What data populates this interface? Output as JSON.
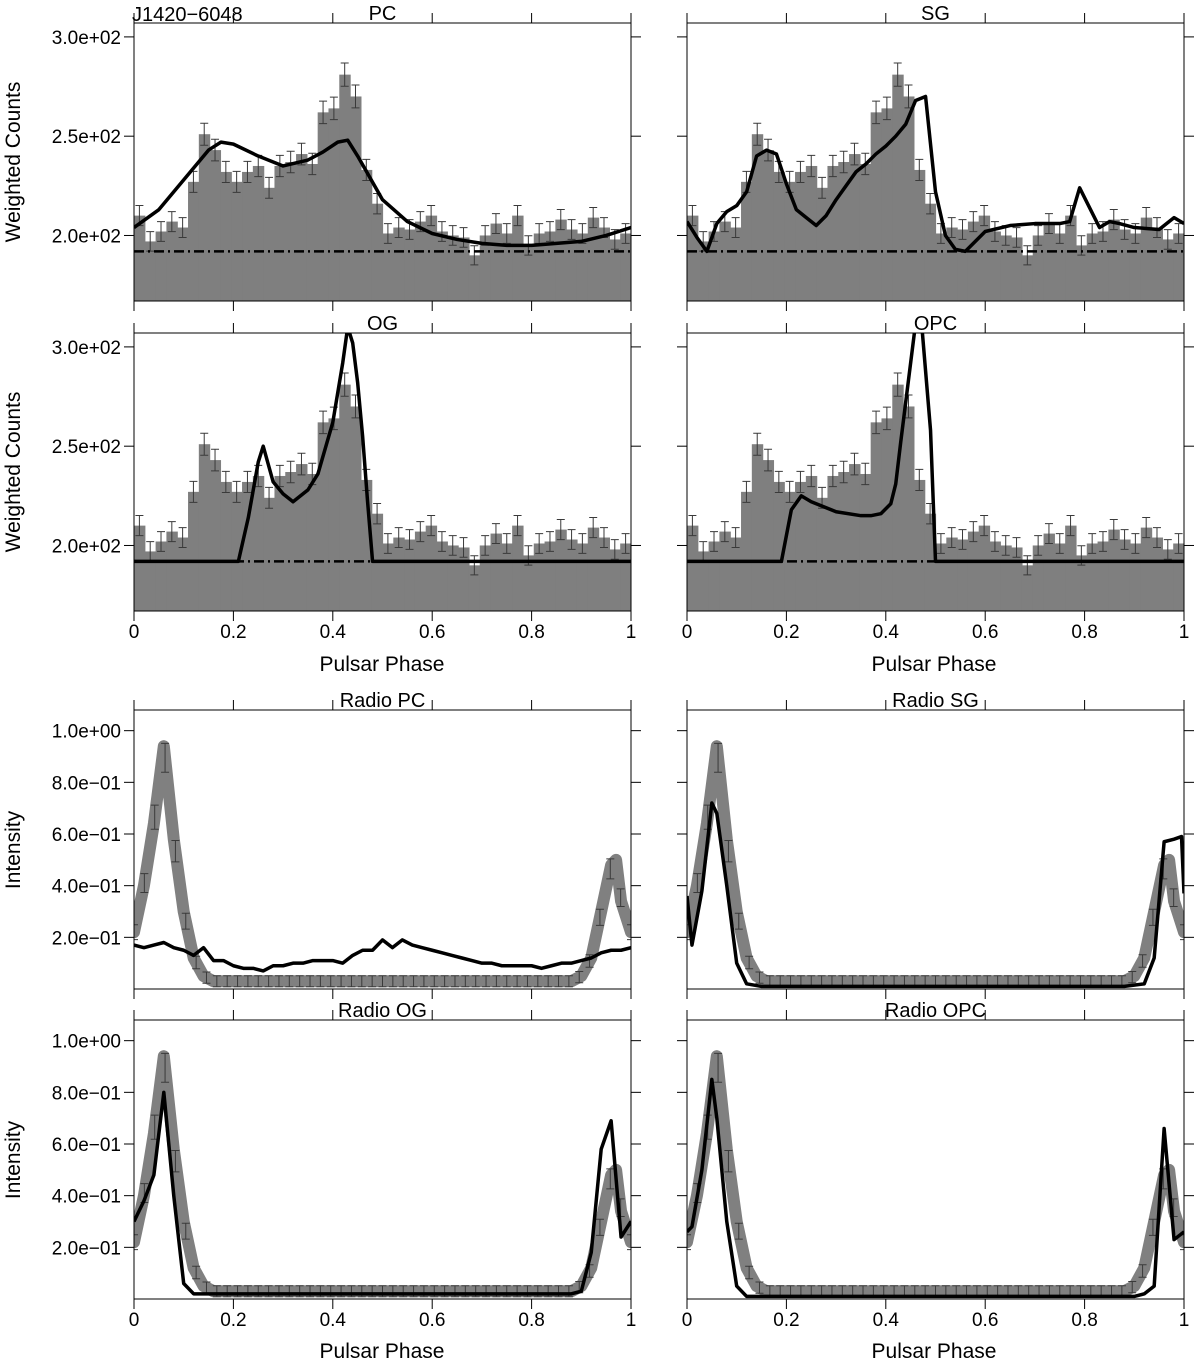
{
  "figure": {
    "pulsar_name": "J1420−6048",
    "phase_label": "Pulsar Phase",
    "gamma_ylabel": "Weighted Counts",
    "radio_ylabel": "Intensity",
    "colors": {
      "histogram": "#7f7f7f",
      "model": "#000000",
      "radio_obs": "#808080"
    }
  },
  "chart_data": [
    {
      "id": "gamma-pc",
      "type": "bar",
      "title": "PC",
      "xlabel": "",
      "ylabel": "Weighted Counts",
      "xlim": [
        0,
        1
      ],
      "ylim": [
        167,
        307
      ],
      "ytick_values": [
        200,
        250,
        300
      ],
      "ytick_labels": [
        "2.0e+02",
        "2.5e+02",
        "3.0e+02"
      ],
      "xtick_values": [
        0,
        0.2,
        0.4,
        0.6,
        0.8,
        1
      ],
      "xtick_labels": [],
      "background_level": 192,
      "histogram": [
        210,
        197,
        202,
        207,
        204,
        227,
        251,
        243,
        232,
        227,
        232,
        235,
        224,
        235,
        237,
        241,
        236,
        262,
        264,
        281,
        270,
        233,
        216,
        201,
        204,
        203,
        207,
        210,
        202,
        200,
        199,
        190,
        200,
        206,
        201,
        210,
        195,
        201,
        202,
        208,
        203,
        201,
        209,
        204,
        198,
        201
      ],
      "model": {
        "x": [
          0,
          0.05,
          0.1,
          0.15,
          0.175,
          0.2,
          0.25,
          0.3,
          0.35,
          0.38,
          0.41,
          0.43,
          0.45,
          0.5,
          0.55,
          0.6,
          0.65,
          0.7,
          0.75,
          0.8,
          0.85,
          0.9,
          0.95,
          1.0
        ],
        "y": [
          204,
          213,
          228,
          243,
          247,
          246,
          240,
          235,
          238,
          242,
          247,
          248,
          240,
          218,
          207,
          201,
          198,
          196,
          195,
          195,
          196,
          197,
          200,
          204
        ]
      }
    },
    {
      "id": "gamma-sg",
      "type": "bar",
      "title": "SG",
      "xlabel": "",
      "ylabel": "",
      "xlim": [
        0,
        1
      ],
      "ylim": [
        167,
        307
      ],
      "ytick_values": [
        200,
        250,
        300
      ],
      "ytick_labels": [],
      "xtick_values": [
        0,
        0.2,
        0.4,
        0.6,
        0.8,
        1
      ],
      "xtick_labels": [],
      "background_level": 192,
      "histogram": [
        210,
        197,
        202,
        207,
        204,
        227,
        251,
        243,
        232,
        227,
        232,
        235,
        224,
        235,
        237,
        241,
        236,
        262,
        264,
        281,
        270,
        233,
        216,
        201,
        204,
        203,
        207,
        210,
        202,
        200,
        199,
        190,
        200,
        206,
        201,
        210,
        195,
        201,
        202,
        208,
        203,
        201,
        209,
        204,
        198,
        201
      ],
      "model": {
        "x": [
          0,
          0.02,
          0.04,
          0.06,
          0.08,
          0.1,
          0.12,
          0.14,
          0.16,
          0.18,
          0.2,
          0.22,
          0.24,
          0.26,
          0.28,
          0.3,
          0.32,
          0.34,
          0.36,
          0.38,
          0.4,
          0.42,
          0.44,
          0.46,
          0.48,
          0.5,
          0.52,
          0.54,
          0.56,
          0.6,
          0.65,
          0.7,
          0.75,
          0.77,
          0.79,
          0.81,
          0.83,
          0.85,
          0.87,
          0.9,
          0.95,
          0.98,
          1.0
        ],
        "y": [
          207,
          199,
          192,
          206,
          212,
          215,
          222,
          240,
          243,
          241,
          226,
          213,
          209,
          205,
          210,
          218,
          225,
          232,
          236,
          241,
          245,
          250,
          256,
          268,
          270,
          222,
          200,
          193,
          192,
          202,
          205,
          206,
          206,
          207,
          224,
          214,
          204,
          207,
          206,
          204,
          203,
          209,
          206
        ]
      }
    },
    {
      "id": "gamma-og",
      "type": "bar",
      "title": "OG",
      "xlabel": "",
      "ylabel": "Weighted Counts",
      "xlim": [
        0,
        1
      ],
      "ylim": [
        167,
        307
      ],
      "ytick_values": [
        200,
        250,
        300
      ],
      "ytick_labels": [
        "2.0e+02",
        "2.5e+02",
        "3.0e+02"
      ],
      "xtick_values": [
        0,
        0.2,
        0.4,
        0.6,
        0.8,
        1
      ],
      "xtick_labels": [
        "0",
        "0.2",
        "0.4",
        "0.6",
        "0.8",
        "1"
      ],
      "background_level": 192,
      "histogram": [
        210,
        197,
        202,
        207,
        204,
        227,
        251,
        243,
        232,
        227,
        232,
        235,
        224,
        235,
        237,
        241,
        236,
        262,
        264,
        281,
        270,
        233,
        216,
        201,
        204,
        203,
        207,
        210,
        202,
        200,
        199,
        190,
        200,
        206,
        201,
        210,
        195,
        201,
        202,
        208,
        203,
        201,
        209,
        204,
        198,
        201
      ],
      "model": {
        "x": [
          0,
          0.1,
          0.21,
          0.23,
          0.25,
          0.26,
          0.28,
          0.3,
          0.32,
          0.35,
          0.37,
          0.4,
          0.42,
          0.43,
          0.44,
          0.45,
          0.46,
          0.47,
          0.48,
          0.5,
          0.6,
          0.7,
          0.8,
          0.9,
          1.0
        ],
        "y": [
          192,
          192,
          192,
          214,
          242,
          250,
          232,
          226,
          222,
          228,
          236,
          262,
          292,
          310,
          302,
          282,
          255,
          222,
          192,
          192,
          192,
          192,
          192,
          192,
          192
        ]
      }
    },
    {
      "id": "gamma-opc",
      "type": "bar",
      "title": "OPC",
      "xlabel": "",
      "ylabel": "",
      "xlim": [
        0,
        1
      ],
      "ylim": [
        167,
        307
      ],
      "ytick_values": [
        200,
        250,
        300
      ],
      "ytick_labels": [],
      "xtick_values": [
        0,
        0.2,
        0.4,
        0.6,
        0.8,
        1
      ],
      "xtick_labels": [
        "0",
        "0.2",
        "0.4",
        "0.6",
        "0.8",
        "1"
      ],
      "background_level": 192,
      "histogram": [
        210,
        197,
        202,
        207,
        204,
        227,
        251,
        243,
        232,
        227,
        232,
        235,
        224,
        235,
        237,
        241,
        236,
        262,
        264,
        281,
        270,
        233,
        216,
        201,
        204,
        203,
        207,
        210,
        202,
        200,
        199,
        190,
        200,
        206,
        201,
        210,
        195,
        201,
        202,
        208,
        203,
        201,
        209,
        204,
        198,
        201
      ],
      "model": {
        "x": [
          0,
          0.1,
          0.19,
          0.21,
          0.23,
          0.25,
          0.3,
          0.35,
          0.37,
          0.39,
          0.41,
          0.42,
          0.43,
          0.44,
          0.45,
          0.46,
          0.47,
          0.49,
          0.5,
          0.6,
          0.7,
          0.8,
          0.9,
          1.0
        ],
        "y": [
          192,
          192,
          192,
          218,
          225,
          222,
          217,
          215,
          215,
          216,
          221,
          231,
          252,
          272,
          292,
          312,
          318,
          258,
          192,
          192,
          192,
          192,
          192,
          192
        ]
      }
    },
    {
      "id": "radio-pc",
      "type": "line",
      "title": "Radio PC",
      "xlabel": "",
      "ylabel": "Intensity",
      "xlim": [
        0,
        1
      ],
      "ylim": [
        0,
        1.08
      ],
      "ytick_values": [
        0.2,
        0.4,
        0.6,
        0.8,
        1.0
      ],
      "ytick_labels": [
        "2.0e−01",
        "4.0e−01",
        "6.0e−01",
        "8.0e−01",
        "1.0e+00"
      ],
      "xtick_values": [
        0,
        0.2,
        0.4,
        0.6,
        0.8,
        1
      ],
      "xtick_labels": [],
      "observed": {
        "x": [
          0,
          0.02,
          0.04,
          0.06,
          0.08,
          0.1,
          0.12,
          0.14,
          0.16,
          0.2,
          0.3,
          0.4,
          0.5,
          0.6,
          0.7,
          0.8,
          0.88,
          0.9,
          0.92,
          0.94,
          0.96,
          0.97,
          0.98,
          1.0
        ],
        "y": [
          0.22,
          0.4,
          0.64,
          0.94,
          0.58,
          0.3,
          0.12,
          0.05,
          0.03,
          0.03,
          0.03,
          0.03,
          0.03,
          0.03,
          0.03,
          0.03,
          0.03,
          0.05,
          0.12,
          0.3,
          0.48,
          0.5,
          0.34,
          0.22
        ]
      },
      "model": {
        "x": [
          0,
          0.02,
          0.04,
          0.06,
          0.08,
          0.1,
          0.12,
          0.14,
          0.16,
          0.18,
          0.2,
          0.22,
          0.24,
          0.26,
          0.28,
          0.3,
          0.32,
          0.34,
          0.36,
          0.38,
          0.4,
          0.42,
          0.44,
          0.46,
          0.48,
          0.5,
          0.52,
          0.54,
          0.56,
          0.58,
          0.6,
          0.62,
          0.64,
          0.66,
          0.68,
          0.7,
          0.72,
          0.74,
          0.76,
          0.78,
          0.8,
          0.82,
          0.84,
          0.86,
          0.88,
          0.9,
          0.92,
          0.94,
          0.96,
          0.98,
          1.0
        ],
        "y": [
          0.17,
          0.16,
          0.17,
          0.18,
          0.16,
          0.15,
          0.13,
          0.16,
          0.11,
          0.11,
          0.09,
          0.08,
          0.08,
          0.07,
          0.09,
          0.09,
          0.1,
          0.1,
          0.11,
          0.11,
          0.11,
          0.1,
          0.13,
          0.15,
          0.15,
          0.19,
          0.16,
          0.19,
          0.17,
          0.16,
          0.15,
          0.14,
          0.13,
          0.12,
          0.11,
          0.1,
          0.1,
          0.09,
          0.09,
          0.09,
          0.09,
          0.08,
          0.09,
          0.1,
          0.1,
          0.11,
          0.12,
          0.14,
          0.15,
          0.15,
          0.16
        ]
      }
    },
    {
      "id": "radio-sg",
      "type": "line",
      "title": "Radio SG",
      "xlabel": "",
      "ylabel": "",
      "xlim": [
        0,
        1
      ],
      "ylim": [
        0,
        1.08
      ],
      "ytick_values": [
        0.2,
        0.4,
        0.6,
        0.8,
        1.0
      ],
      "ytick_labels": [],
      "xtick_values": [
        0,
        0.2,
        0.4,
        0.6,
        0.8,
        1
      ],
      "xtick_labels": [],
      "observed": {
        "x": [
          0,
          0.02,
          0.04,
          0.06,
          0.08,
          0.1,
          0.12,
          0.14,
          0.16,
          0.2,
          0.3,
          0.4,
          0.5,
          0.6,
          0.7,
          0.8,
          0.88,
          0.9,
          0.92,
          0.94,
          0.96,
          0.97,
          0.98,
          1.0
        ],
        "y": [
          0.22,
          0.4,
          0.64,
          0.94,
          0.58,
          0.3,
          0.12,
          0.05,
          0.03,
          0.03,
          0.03,
          0.03,
          0.03,
          0.03,
          0.03,
          0.03,
          0.03,
          0.05,
          0.12,
          0.3,
          0.48,
          0.5,
          0.34,
          0.22
        ]
      },
      "model": {
        "x": [
          0,
          0.01,
          0.03,
          0.05,
          0.06,
          0.08,
          0.1,
          0.12,
          0.15,
          0.2,
          0.3,
          0.4,
          0.5,
          0.6,
          0.7,
          0.8,
          0.88,
          0.92,
          0.94,
          0.96,
          0.98,
          0.995,
          1.0
        ],
        "y": [
          0.36,
          0.17,
          0.38,
          0.72,
          0.68,
          0.4,
          0.1,
          0.02,
          0.01,
          0.01,
          0.01,
          0.01,
          0.01,
          0.01,
          0.01,
          0.01,
          0.01,
          0.02,
          0.12,
          0.57,
          0.58,
          0.59,
          0.37
        ]
      }
    },
    {
      "id": "radio-og",
      "type": "line",
      "title": "Radio OG",
      "xlabel": "Pulsar Phase",
      "ylabel": "Intensity",
      "xlim": [
        0,
        1
      ],
      "ylim": [
        0,
        1.08
      ],
      "ytick_values": [
        0.2,
        0.4,
        0.6,
        0.8,
        1.0
      ],
      "ytick_labels": [
        "2.0e−01",
        "4.0e−01",
        "6.0e−01",
        "8.0e−01",
        "1.0e+00"
      ],
      "xtick_values": [
        0,
        0.2,
        0.4,
        0.6,
        0.8,
        1
      ],
      "xtick_labels": [
        "0",
        "0.2",
        "0.4",
        "0.6",
        "0.8",
        "1"
      ],
      "observed": {
        "x": [
          0,
          0.02,
          0.04,
          0.06,
          0.08,
          0.1,
          0.12,
          0.14,
          0.16,
          0.2,
          0.3,
          0.4,
          0.5,
          0.6,
          0.7,
          0.8,
          0.88,
          0.9,
          0.92,
          0.94,
          0.96,
          0.97,
          0.98,
          1.0
        ],
        "y": [
          0.22,
          0.4,
          0.64,
          0.94,
          0.58,
          0.3,
          0.12,
          0.05,
          0.03,
          0.03,
          0.03,
          0.03,
          0.03,
          0.03,
          0.03,
          0.03,
          0.03,
          0.05,
          0.12,
          0.3,
          0.48,
          0.5,
          0.34,
          0.22
        ]
      },
      "model": {
        "x": [
          0,
          0.02,
          0.04,
          0.06,
          0.08,
          0.1,
          0.12,
          0.14,
          0.2,
          0.3,
          0.4,
          0.5,
          0.6,
          0.7,
          0.8,
          0.88,
          0.9,
          0.92,
          0.94,
          0.96,
          0.98,
          1.0
        ],
        "y": [
          0.3,
          0.38,
          0.48,
          0.8,
          0.4,
          0.06,
          0.02,
          0.02,
          0.02,
          0.02,
          0.02,
          0.02,
          0.02,
          0.02,
          0.02,
          0.02,
          0.03,
          0.18,
          0.58,
          0.69,
          0.24,
          0.3
        ]
      }
    },
    {
      "id": "radio-opc",
      "type": "line",
      "title": "Radio OPC",
      "xlabel": "Pulsar Phase",
      "ylabel": "",
      "xlim": [
        0,
        1
      ],
      "ylim": [
        0,
        1.08
      ],
      "ytick_values": [
        0.2,
        0.4,
        0.6,
        0.8,
        1.0
      ],
      "ytick_labels": [],
      "xtick_values": [
        0,
        0.2,
        0.4,
        0.6,
        0.8,
        1
      ],
      "xtick_labels": [
        "0",
        "0.2",
        "0.4",
        "0.6",
        "0.8",
        "1"
      ],
      "observed": {
        "x": [
          0,
          0.02,
          0.04,
          0.06,
          0.08,
          0.1,
          0.12,
          0.14,
          0.16,
          0.2,
          0.3,
          0.4,
          0.5,
          0.6,
          0.7,
          0.8,
          0.88,
          0.9,
          0.92,
          0.94,
          0.96,
          0.97,
          0.98,
          1.0
        ],
        "y": [
          0.22,
          0.4,
          0.64,
          0.94,
          0.58,
          0.3,
          0.12,
          0.05,
          0.03,
          0.03,
          0.03,
          0.03,
          0.03,
          0.03,
          0.03,
          0.03,
          0.03,
          0.05,
          0.12,
          0.3,
          0.48,
          0.5,
          0.34,
          0.22
        ]
      },
      "model": {
        "x": [
          0,
          0.01,
          0.03,
          0.05,
          0.06,
          0.08,
          0.1,
          0.12,
          0.2,
          0.3,
          0.4,
          0.5,
          0.6,
          0.7,
          0.8,
          0.9,
          0.92,
          0.94,
          0.96,
          0.98,
          1.0
        ],
        "y": [
          0.26,
          0.28,
          0.5,
          0.85,
          0.7,
          0.3,
          0.05,
          0.01,
          0.01,
          0.01,
          0.01,
          0.01,
          0.01,
          0.01,
          0.01,
          0.01,
          0.02,
          0.05,
          0.66,
          0.23,
          0.26
        ]
      }
    }
  ]
}
